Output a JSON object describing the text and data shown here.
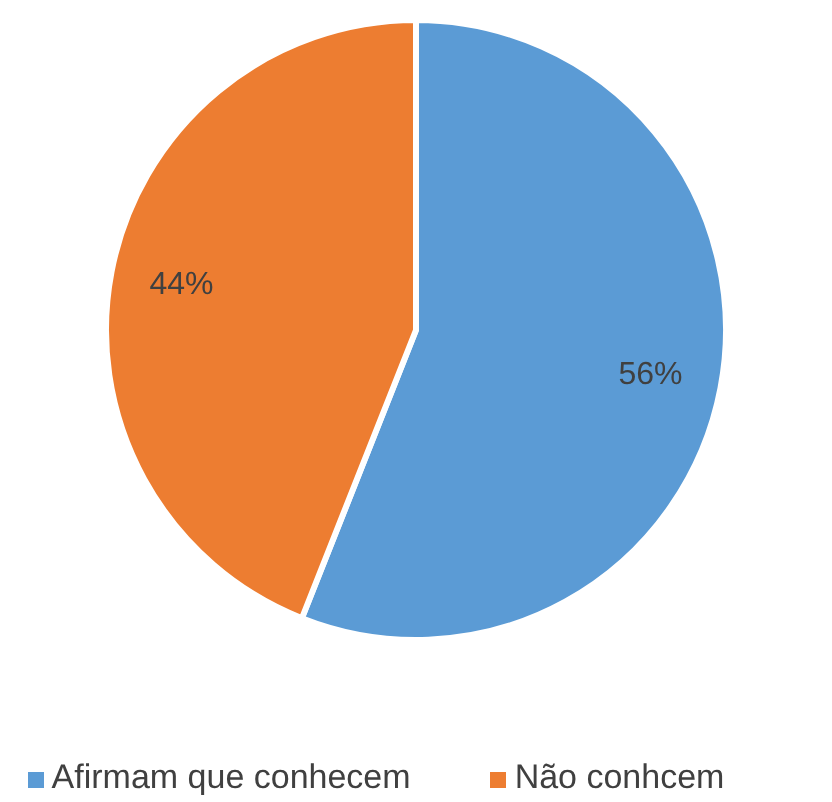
{
  "chart_data": {
    "type": "pie",
    "categories": [
      "Afirmam que conhecem",
      "Não conhcem"
    ],
    "values": [
      56,
      44
    ],
    "colors": [
      "#5b9bd5",
      "#ed7d31"
    ],
    "value_labels": [
      "56%",
      "44%"
    ],
    "legend": "bottom"
  }
}
